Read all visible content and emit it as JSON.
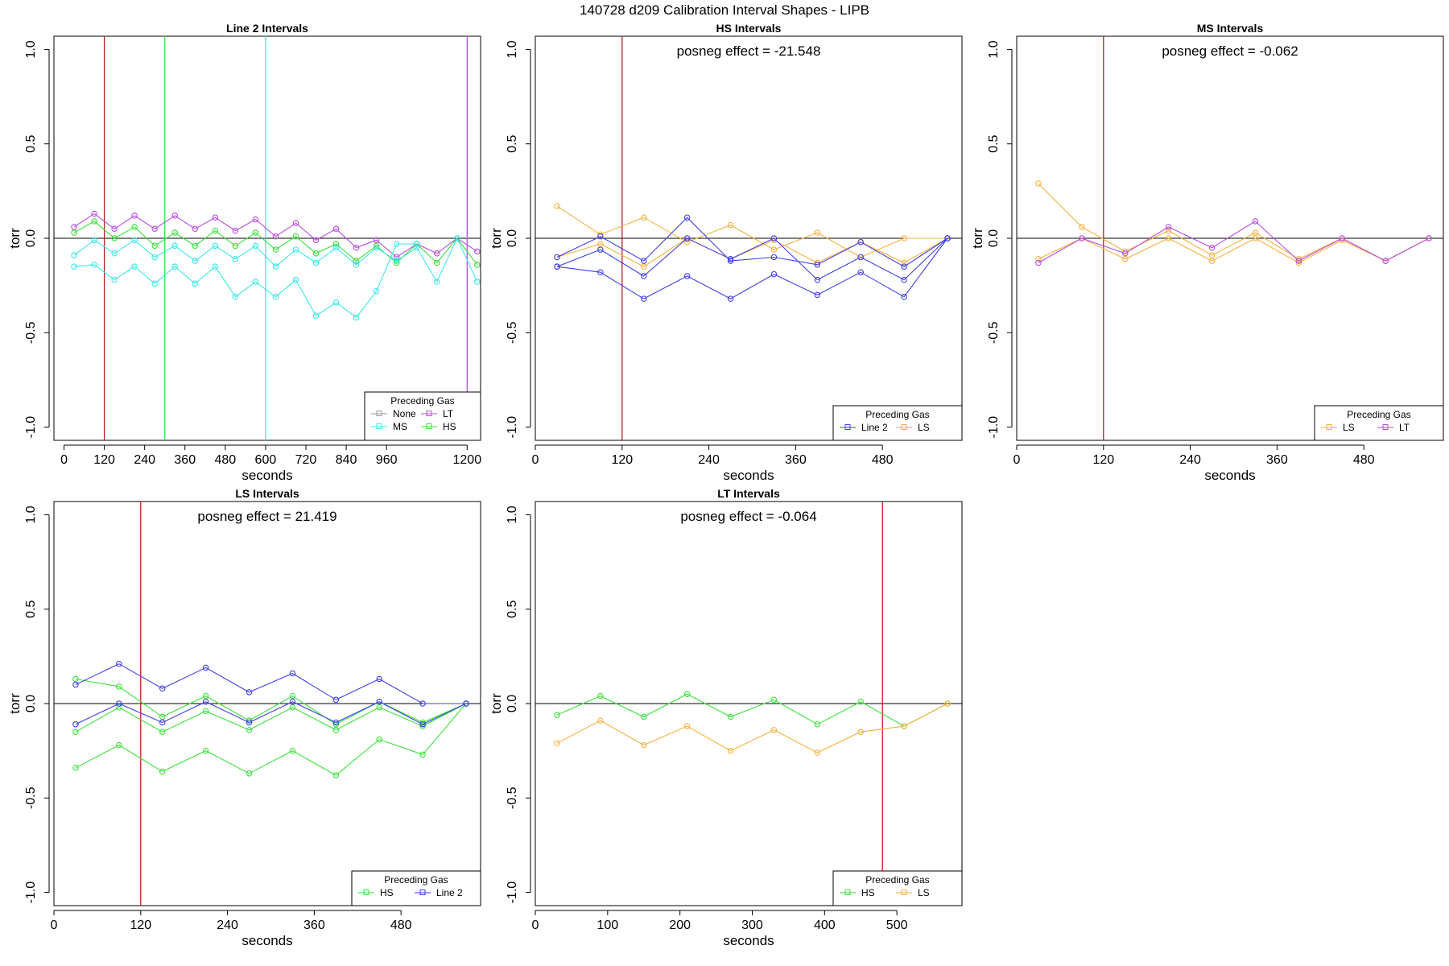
{
  "figure": {
    "title": "140728   d209   Calibration Interval Shapes - LIPB"
  },
  "colors": {
    "None": "#999999",
    "LT": "#b84de0",
    "MS": "#3ce8e8",
    "HS": "#3ae23a",
    "Line 2": "#4040e8",
    "LS": "#f5b240",
    "vline_red": "#b22222",
    "hline": "#000000",
    "vline_green": "#3ae23a",
    "vline_cyan": "#3ce8e8",
    "vline_purple": "#b84de0"
  },
  "chart_data": [
    {
      "type": "line",
      "title": "Line 2 Intervals",
      "xlabel": "seconds",
      "ylabel": "torr",
      "xlim": [
        -30,
        1240
      ],
      "ylim": [
        -1.07,
        1.07
      ],
      "xticks": [
        0,
        120,
        240,
        360,
        480,
        600,
        720,
        840,
        960,
        1200
      ],
      "yticks": [
        -1.0,
        -0.5,
        0.0,
        0.5,
        1.0
      ],
      "ytick_labels": [
        "-1.0",
        "-0.5",
        "0.0",
        "0.5",
        "1.0"
      ],
      "annotation": "",
      "hline": 0,
      "vlines": [
        {
          "x": 120,
          "color": "#b22222"
        },
        {
          "x": 300,
          "color": "#3ae23a"
        },
        {
          "x": 600,
          "color": "#3ce8e8"
        },
        {
          "x": 1200,
          "color": "#b84de0"
        }
      ],
      "legend": {
        "title": "Preceding Gas",
        "position": "bottom-right",
        "columns": 2,
        "entries": [
          "None",
          "LT",
          "MS",
          "HS"
        ]
      },
      "series": [
        {
          "name": "LT",
          "color": "#b84de0",
          "x": [
            30,
            90,
            150,
            210,
            270,
            330,
            390,
            450,
            510,
            570,
            630,
            690,
            750,
            810,
            870,
            930,
            990,
            1050,
            1110,
            1170,
            1230
          ],
          "y": [
            0.06,
            0.13,
            0.05,
            0.12,
            0.05,
            0.12,
            0.05,
            0.11,
            0.04,
            0.1,
            0.01,
            0.08,
            -0.01,
            0.05,
            -0.05,
            -0.01,
            -0.1,
            -0.03,
            -0.08,
            0.0,
            -0.07
          ]
        },
        {
          "name": "HS",
          "color": "#3ae23a",
          "x": [
            30,
            90,
            150,
            210,
            270,
            330,
            390,
            450,
            510,
            570,
            630,
            690,
            750,
            810,
            870,
            930,
            990,
            1050,
            1110,
            1170,
            1230
          ],
          "y": [
            0.03,
            0.09,
            0.0,
            0.06,
            -0.04,
            0.03,
            -0.04,
            0.04,
            -0.04,
            0.03,
            -0.06,
            0.01,
            -0.08,
            -0.03,
            -0.12,
            -0.04,
            -0.13,
            -0.03,
            -0.13,
            0.0,
            -0.14
          ]
        },
        {
          "name": "MS",
          "color": "#3ce8e8",
          "x": [
            30,
            90,
            150,
            210,
            270,
            330,
            390,
            450,
            510,
            570,
            630,
            690,
            750,
            810,
            870,
            930,
            990,
            1050,
            1110,
            1170,
            1230
          ],
          "y": [
            -0.09,
            -0.01,
            -0.08,
            -0.01,
            -0.1,
            -0.04,
            -0.12,
            -0.04,
            -0.11,
            -0.04,
            -0.15,
            -0.06,
            -0.13,
            -0.05,
            -0.14,
            -0.05,
            -0.12,
            -0.05,
            -0.23,
            0.0,
            -0.23
          ]
        },
        {
          "name": "MS",
          "color": "#3ce8e8",
          "x": [
            30,
            90,
            150,
            210,
            270,
            330,
            390,
            450,
            510,
            570,
            630,
            690,
            750,
            810,
            870,
            930,
            990,
            1050
          ],
          "y": [
            -0.15,
            -0.14,
            -0.22,
            -0.15,
            -0.24,
            -0.15,
            -0.24,
            -0.15,
            -0.31,
            -0.23,
            -0.31,
            -0.22,
            -0.41,
            -0.34,
            -0.42,
            -0.28,
            -0.03,
            -0.03
          ]
        }
      ]
    },
    {
      "type": "line",
      "title": "HS Intervals",
      "xlabel": "seconds",
      "ylabel": "torr",
      "xlim": [
        0,
        590
      ],
      "ylim": [
        -1.07,
        1.07
      ],
      "xticks": [
        0,
        120,
        240,
        360,
        480
      ],
      "yticks": [
        -1.0,
        -0.5,
        0.0,
        0.5,
        1.0
      ],
      "ytick_labels": [
        "-1.0",
        "-0.5",
        "0.0",
        "0.5",
        "1.0"
      ],
      "annotation": "posneg effect = -21.548",
      "hline": 0,
      "vlines": [
        {
          "x": 120,
          "color": "#b22222"
        }
      ],
      "legend": {
        "title": "Preceding Gas",
        "position": "bottom-right",
        "columns": 2,
        "entries": [
          "Line 2",
          "LS"
        ]
      },
      "series": [
        {
          "name": "LS",
          "color": "#f5b240",
          "x": [
            30,
            90,
            150,
            210,
            270,
            330,
            390,
            450,
            510,
            570
          ],
          "y": [
            0.17,
            0.02,
            0.11,
            -0.02,
            0.07,
            -0.06,
            0.03,
            -0.1,
            0.0,
            0.0
          ]
        },
        {
          "name": "LS",
          "color": "#f5b240",
          "x": [
            30,
            90,
            150,
            210,
            270,
            330,
            390,
            450,
            510,
            570
          ],
          "y": [
            -0.1,
            -0.03,
            -0.15,
            0.0,
            -0.11,
            -0.01,
            -0.13,
            -0.02,
            -0.13,
            0.0
          ]
        },
        {
          "name": "Line 2",
          "color": "#4040e8",
          "x": [
            30,
            90,
            150,
            210,
            270,
            330,
            390,
            450,
            510,
            570
          ],
          "y": [
            -0.1,
            0.01,
            -0.12,
            0.11,
            -0.12,
            -0.1,
            -0.14,
            -0.02,
            -0.15,
            0.0
          ]
        },
        {
          "name": "Line 2",
          "color": "#4040e8",
          "x": [
            30,
            90,
            150,
            210,
            270,
            330,
            390,
            450,
            510,
            570
          ],
          "y": [
            -0.15,
            -0.06,
            -0.2,
            0.0,
            -0.11,
            0.0,
            -0.22,
            -0.1,
            -0.22,
            0.0
          ]
        },
        {
          "name": "Line 2",
          "color": "#4040e8",
          "x": [
            30,
            90,
            150,
            210,
            270,
            330,
            390,
            450,
            510,
            570
          ],
          "y": [
            -0.15,
            -0.18,
            -0.32,
            -0.2,
            -0.32,
            -0.19,
            -0.3,
            -0.18,
            -0.31,
            0.0
          ]
        }
      ]
    },
    {
      "type": "line",
      "title": "MS Intervals",
      "xlabel": "seconds",
      "ylabel": "torr",
      "xlim": [
        0,
        590
      ],
      "ylim": [
        -1.07,
        1.07
      ],
      "xticks": [
        0,
        120,
        240,
        360,
        480
      ],
      "yticks": [
        -1.0,
        -0.5,
        0.0,
        0.5,
        1.0
      ],
      "ytick_labels": [
        "-1.0",
        "-0.5",
        "0.0",
        "0.5",
        "1.0"
      ],
      "annotation": "posneg effect = -0.062",
      "hline": 0,
      "vlines": [
        {
          "x": 120,
          "color": "#b22222"
        }
      ],
      "legend": {
        "title": "Preceding Gas",
        "position": "bottom-right",
        "columns": 2,
        "entries": [
          "LS",
          "LT"
        ]
      },
      "series": [
        {
          "name": "LS",
          "color": "#f5b240",
          "x": [
            30,
            90,
            150,
            210,
            270,
            330,
            390,
            450,
            510,
            570
          ],
          "y": [
            0.29,
            0.06,
            -0.07,
            0.04,
            -0.09,
            0.03,
            -0.11,
            0.0,
            -0.12,
            0.0
          ]
        },
        {
          "name": "LS",
          "color": "#f5b240",
          "x": [
            30,
            90,
            150,
            210,
            270,
            330,
            390,
            450,
            510,
            570
          ],
          "y": [
            -0.11,
            0.0,
            -0.11,
            0.0,
            -0.12,
            0.0,
            -0.13,
            -0.01,
            -0.12,
            0.0
          ]
        },
        {
          "name": "LT",
          "color": "#b84de0",
          "x": [
            30,
            90,
            150,
            210,
            270,
            330,
            390,
            450,
            510,
            570
          ],
          "y": [
            -0.13,
            0.0,
            -0.08,
            0.06,
            -0.05,
            0.09,
            -0.12,
            0.0,
            -0.12,
            0.0
          ]
        }
      ]
    },
    {
      "type": "line",
      "title": "LS Intervals",
      "xlabel": "seconds",
      "ylabel": "torr",
      "xlim": [
        0,
        590
      ],
      "ylim": [
        -1.07,
        1.07
      ],
      "xticks": [
        0,
        120,
        240,
        360,
        480
      ],
      "yticks": [
        -1.0,
        -0.5,
        0.0,
        0.5,
        1.0
      ],
      "ytick_labels": [
        "-1.0",
        "-0.5",
        "0.0",
        "0.5",
        "1.0"
      ],
      "annotation": "posneg effect = 21.419",
      "hline": 0,
      "vlines": [
        {
          "x": 120,
          "color": "#b22222"
        }
      ],
      "legend": {
        "title": "Preceding Gas",
        "position": "bottom-right",
        "columns": 2,
        "entries": [
          "HS",
          "Line 2"
        ]
      },
      "series": [
        {
          "name": "HS",
          "color": "#3ae23a",
          "x": [
            30,
            90,
            150,
            210,
            270,
            330,
            390,
            450,
            510,
            570
          ],
          "y": [
            0.13,
            0.09,
            -0.07,
            0.04,
            -0.09,
            0.04,
            -0.11,
            0.01,
            -0.1,
            0.0
          ]
        },
        {
          "name": "HS",
          "color": "#3ae23a",
          "x": [
            30,
            90,
            150,
            210,
            270,
            330,
            390,
            450,
            510,
            570
          ],
          "y": [
            -0.15,
            -0.02,
            -0.15,
            -0.04,
            -0.14,
            -0.02,
            -0.14,
            -0.02,
            -0.12,
            0.0
          ]
        },
        {
          "name": "HS",
          "color": "#3ae23a",
          "x": [
            30,
            90,
            150,
            210,
            270,
            330,
            390,
            450,
            510,
            570
          ],
          "y": [
            -0.34,
            -0.22,
            -0.36,
            -0.25,
            -0.37,
            -0.25,
            -0.38,
            -0.19,
            -0.27,
            0.0
          ]
        },
        {
          "name": "Line 2",
          "color": "#4040e8",
          "x": [
            30,
            90,
            150,
            210,
            270,
            330,
            390,
            450,
            510,
            570
          ],
          "y": [
            0.1,
            0.21,
            0.08,
            0.19,
            0.06,
            0.16,
            0.02,
            0.13,
            0.0,
            0.0
          ]
        },
        {
          "name": "Line 2",
          "color": "#4040e8",
          "x": [
            30,
            90,
            150,
            210,
            270,
            330,
            390,
            450,
            510,
            570
          ],
          "y": [
            -0.11,
            0.0,
            -0.1,
            0.01,
            -0.1,
            0.01,
            -0.1,
            0.01,
            -0.11,
            0.0
          ]
        }
      ]
    },
    {
      "type": "line",
      "title": "LT Intervals",
      "xlabel": "seconds",
      "ylabel": "torr",
      "xlim": [
        0,
        590
      ],
      "ylim": [
        -1.07,
        1.07
      ],
      "xticks": [
        0,
        100,
        200,
        300,
        400,
        500
      ],
      "yticks": [
        -1.0,
        -0.5,
        0.0,
        0.5,
        1.0
      ],
      "ytick_labels": [
        "-1.0",
        "-0.5",
        "0.0",
        "0.5",
        "1.0"
      ],
      "annotation": "posneg effect = -0.064",
      "hline": 0,
      "vlines": [
        {
          "x": 480,
          "color": "#b22222"
        }
      ],
      "legend": {
        "title": "Preceding Gas",
        "position": "bottom-right",
        "columns": 2,
        "entries": [
          "HS",
          "LS"
        ]
      },
      "series": [
        {
          "name": "HS",
          "color": "#3ae23a",
          "x": [
            30,
            90,
            150,
            210,
            270,
            330,
            390,
            450,
            510,
            570
          ],
          "y": [
            -0.06,
            0.04,
            -0.07,
            0.05,
            -0.07,
            0.02,
            -0.11,
            0.01,
            -0.12,
            0.0
          ]
        },
        {
          "name": "LS",
          "color": "#f5b240",
          "x": [
            30,
            90,
            150,
            210,
            270,
            330,
            390,
            450,
            510,
            570
          ],
          "y": [
            -0.21,
            -0.09,
            -0.22,
            -0.12,
            -0.25,
            -0.14,
            -0.26,
            -0.15,
            -0.12,
            0.0
          ]
        }
      ]
    }
  ]
}
